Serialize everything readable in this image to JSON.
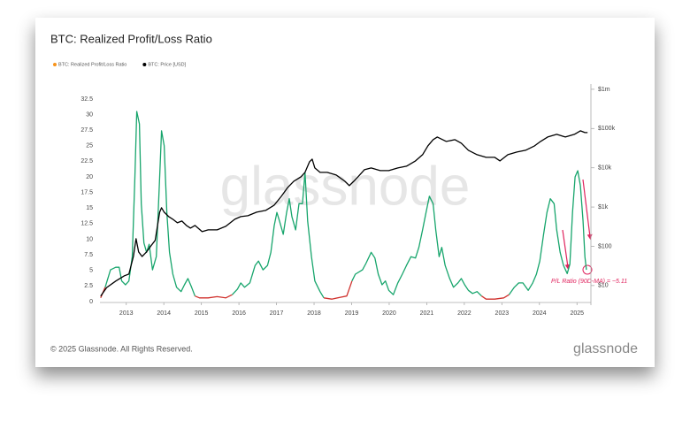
{
  "chart_data": {
    "type": "line",
    "title": "BTC: Realized Profit/Loss Ratio",
    "watermark": "glassnode",
    "footer": "© 2025 Glassnode. All Rights Reserved.",
    "brand": "glassnode",
    "annotation": "P/L Ratio (90D-MA) = ~5.11",
    "xlim": [
      2012.3,
      2025.3
    ],
    "xticks": [
      2013,
      2014,
      2015,
      2016,
      2017,
      2018,
      2019,
      2020,
      2021,
      2022,
      2023,
      2024,
      2025
    ],
    "ylim": [
      0,
      34.9
    ],
    "yticks": [
      0,
      2.5,
      5,
      7.5,
      10,
      12.5,
      15,
      17.5,
      20,
      22.5,
      25,
      27.5,
      30,
      32.5
    ],
    "y2lim": [
      3.9,
      1360000
    ],
    "y2log": true,
    "y2ticks": [
      {
        "value": 10,
        "label": "$10"
      },
      {
        "value": 100,
        "label": "$100"
      },
      {
        "value": 1000,
        "label": "$1k"
      },
      {
        "value": 10000,
        "label": "$10k"
      },
      {
        "value": 100000,
        "label": "$100k"
      },
      {
        "value": 1000000,
        "label": "$1m"
      }
    ],
    "series": [
      {
        "name": "BTC: Realized Profit/Loss Ratio",
        "color": "#f7931a",
        "line_color": "#17a56c",
        "loss_color": "#d0312d",
        "x": [
          2012.32,
          2012.44,
          2012.58,
          2012.72,
          2012.81,
          2012.88,
          2012.98,
          2013.07,
          2013.16,
          2013.23,
          2013.28,
          2013.35,
          2013.4,
          2013.47,
          2013.54,
          2013.61,
          2013.7,
          2013.8,
          2013.89,
          2013.94,
          2014.01,
          2014.08,
          2014.15,
          2014.24,
          2014.34,
          2014.46,
          2014.55,
          2014.64,
          2014.74,
          2014.83,
          2014.95,
          2015.18,
          2015.42,
          2015.65,
          2015.82,
          2015.96,
          2016.05,
          2016.15,
          2016.29,
          2016.43,
          2016.52,
          2016.64,
          2016.76,
          2016.85,
          2016.94,
          2017.01,
          2017.08,
          2017.18,
          2017.27,
          2017.34,
          2017.41,
          2017.51,
          2017.6,
          2017.69,
          2017.76,
          2017.83,
          2017.93,
          2018.02,
          2018.16,
          2018.26,
          2018.47,
          2018.7,
          2018.87,
          2019.01,
          2019.1,
          2019.29,
          2019.38,
          2019.52,
          2019.62,
          2019.71,
          2019.81,
          2019.9,
          2019.99,
          2020.11,
          2020.23,
          2020.35,
          2020.46,
          2020.58,
          2020.7,
          2020.79,
          2020.89,
          2020.98,
          2021.07,
          2021.17,
          2021.24,
          2021.33,
          2021.4,
          2021.49,
          2021.61,
          2021.71,
          2021.83,
          2021.92,
          2022.01,
          2022.11,
          2022.22,
          2022.34,
          2022.46,
          2022.58,
          2022.81,
          2023.05,
          2023.19,
          2023.33,
          2023.45,
          2023.56,
          2023.7,
          2023.82,
          2023.92,
          2024.01,
          2024.11,
          2024.2,
          2024.29,
          2024.39,
          2024.46,
          2024.55,
          2024.64,
          2024.74,
          2024.81,
          2024.88,
          2024.95,
          2025.02,
          2025.09,
          2025.16,
          2025.21,
          2025.25
        ],
        "values": [
          0.6,
          2.3,
          5.1,
          5.5,
          5.5,
          3.3,
          2.7,
          3.3,
          7.2,
          20,
          30.5,
          28.5,
          15.7,
          9.4,
          7.9,
          9.2,
          5.1,
          7.2,
          20,
          27.4,
          25,
          14.3,
          7.9,
          4.4,
          2.3,
          1.6,
          2.7,
          3.7,
          2.3,
          0.9,
          0.6,
          0.6,
          0.8,
          0.6,
          1.1,
          2.0,
          3.0,
          2.3,
          3.0,
          5.8,
          6.5,
          5.1,
          5.8,
          7.9,
          12.2,
          14.3,
          12.9,
          10.8,
          14.3,
          16.5,
          13.6,
          11.5,
          15.7,
          15.7,
          20.7,
          12.9,
          7.2,
          3.3,
          1.6,
          0.6,
          0.4,
          0.7,
          0.9,
          3.3,
          4.4,
          5.1,
          6.1,
          7.9,
          7.0,
          4.4,
          2.7,
          3.3,
          1.8,
          1.1,
          3.0,
          4.4,
          5.8,
          7.2,
          7.0,
          8.7,
          11.5,
          14.3,
          16.9,
          15.7,
          11.5,
          7.2,
          8.7,
          5.8,
          3.7,
          2.3,
          3.0,
          3.7,
          2.7,
          1.8,
          1.3,
          1.6,
          0.9,
          0.4,
          0.4,
          0.6,
          1.1,
          2.3,
          3.0,
          3.0,
          1.8,
          3.0,
          4.4,
          6.5,
          10.8,
          14.3,
          16.5,
          15.7,
          11.5,
          7.9,
          5.8,
          4.5,
          6.0,
          14.3,
          20,
          21,
          18.6,
          12.9,
          7.2,
          5.1
        ]
      },
      {
        "name": "BTC: Price [USD]",
        "color": "#000000",
        "axis": "y2",
        "x": [
          2012.32,
          2012.48,
          2012.72,
          2012.95,
          2013.07,
          2013.19,
          2013.26,
          2013.33,
          2013.42,
          2013.54,
          2013.66,
          2013.77,
          2013.89,
          2013.94,
          2014.01,
          2014.13,
          2014.24,
          2014.36,
          2014.48,
          2014.6,
          2014.71,
          2014.83,
          2015.02,
          2015.18,
          2015.42,
          2015.65,
          2015.89,
          2016.05,
          2016.24,
          2016.47,
          2016.71,
          2016.94,
          2017.13,
          2017.3,
          2017.46,
          2017.65,
          2017.76,
          2017.88,
          2017.95,
          2018.02,
          2018.16,
          2018.35,
          2018.59,
          2018.82,
          2018.94,
          2019.06,
          2019.17,
          2019.34,
          2019.52,
          2019.76,
          2019.99,
          2020.23,
          2020.46,
          2020.7,
          2020.89,
          2021.03,
          2021.17,
          2021.28,
          2021.52,
          2021.75,
          2021.92,
          2022.11,
          2022.34,
          2022.58,
          2022.81,
          2022.95,
          2023.16,
          2023.4,
          2023.63,
          2023.87,
          2024.03,
          2024.22,
          2024.46,
          2024.69,
          2024.93,
          2025.09,
          2025.21,
          2025.28
        ],
        "values": [
          5.4,
          8.9,
          13,
          17.7,
          19.6,
          55,
          156,
          72,
          55,
          72,
          103,
          141,
          740,
          959,
          740,
          571,
          489,
          397,
          441,
          340,
          291,
          340,
          236,
          262,
          262,
          323,
          489,
          571,
          601,
          740,
          821,
          1122,
          1884,
          3162,
          4550,
          5890,
          7640,
          14200,
          16600,
          9890,
          7640,
          7640,
          6530,
          4550,
          3510,
          4550,
          5890,
          8910,
          9890,
          8470,
          8470,
          9890,
          11000,
          15000,
          21500,
          36200,
          52000,
          60800,
          46900,
          52000,
          42300,
          27900,
          21500,
          18400,
          18400,
          15000,
          21500,
          25200,
          27900,
          36200,
          46900,
          60800,
          71000,
          60800,
          71000,
          87300,
          78700,
          78700
        ]
      }
    ]
  }
}
